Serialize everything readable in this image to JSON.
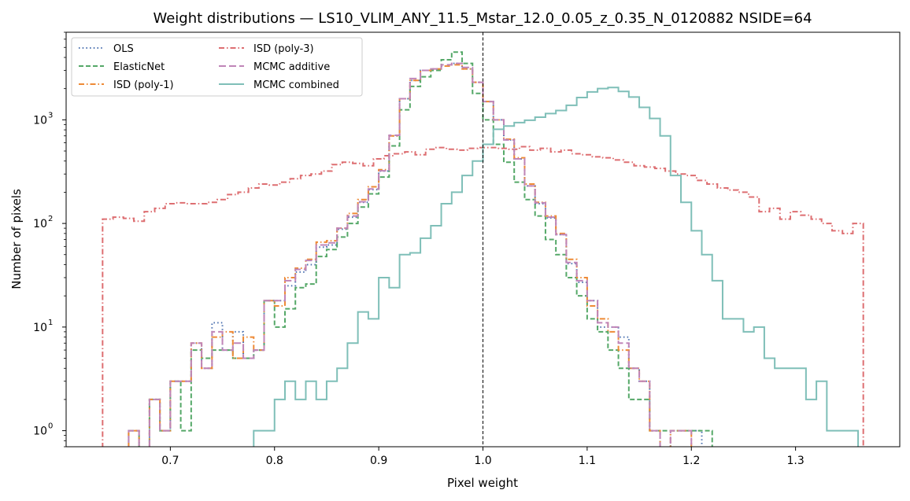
{
  "chart_data": {
    "type": "histogram-step",
    "title": "Weight distributions — LS10_VLIM_ANY_11.5_Mstar_12.0_0.05_z_0.35_N_0120882  NSIDE=64",
    "xlabel": "Pixel weight",
    "ylabel": "Number of pixels",
    "xlim": [
      0.6,
      1.4
    ],
    "ylim": [
      0.7,
      7000
    ],
    "yscale": "log",
    "grid": false,
    "legend_position": "top-left",
    "vline_x": 1.0,
    "x_ticks": [
      {
        "value": 0.7,
        "label": "0.7"
      },
      {
        "value": 0.8,
        "label": "0.8"
      },
      {
        "value": 0.9,
        "label": "0.9"
      },
      {
        "value": 1.0,
        "label": "1.0"
      },
      {
        "value": 1.1,
        "label": "1.1"
      },
      {
        "value": 1.2,
        "label": "1.2"
      },
      {
        "value": 1.3,
        "label": "1.3"
      }
    ],
    "y_ticks": [
      {
        "value": 1,
        "base": "10",
        "exp": "0"
      },
      {
        "value": 10,
        "base": "10",
        "exp": "1"
      },
      {
        "value": 100,
        "base": "10",
        "exp": "2"
      },
      {
        "value": 1000,
        "base": "10",
        "exp": "3"
      }
    ],
    "series": [
      {
        "name": "OLS",
        "color": "#4c72b0",
        "dash": "dotted",
        "edges": [
          0.66,
          0.67,
          0.68,
          0.69,
          0.7,
          0.71,
          0.72,
          0.73,
          0.74,
          0.75,
          0.76,
          0.77,
          0.78,
          0.79,
          0.8,
          0.81,
          0.82,
          0.83,
          0.84,
          0.85,
          0.86,
          0.87,
          0.88,
          0.89,
          0.9,
          0.91,
          0.92,
          0.93,
          0.94,
          0.95,
          0.96,
          0.97,
          0.98,
          0.99,
          1.0,
          1.01,
          1.02,
          1.03,
          1.04,
          1.05,
          1.06,
          1.07,
          1.08,
          1.09,
          1.1,
          1.11,
          1.12,
          1.13,
          1.14,
          1.15,
          1.16,
          1.17,
          1.18,
          1.19,
          1.2,
          1.21
        ],
        "counts": [
          1,
          0,
          2,
          1,
          3,
          3,
          7,
          4,
          11,
          6,
          9,
          5,
          6,
          18,
          18,
          25,
          34,
          40,
          59,
          62,
          88,
          115,
          160,
          212,
          320,
          700,
          1600,
          2400,
          3000,
          3100,
          3300,
          3500,
          3100,
          2300,
          1500,
          1000,
          640,
          420,
          230,
          155,
          113,
          78,
          41,
          27,
          18,
          10,
          10,
          8,
          4,
          3,
          1,
          0,
          1,
          1,
          1
        ]
      },
      {
        "name": "ElasticNet",
        "color": "#55a868",
        "dash": "dashed",
        "edges": [
          0.66,
          0.67,
          0.68,
          0.69,
          0.7,
          0.71,
          0.72,
          0.73,
          0.74,
          0.75,
          0.76,
          0.77,
          0.78,
          0.79,
          0.8,
          0.81,
          0.82,
          0.83,
          0.84,
          0.85,
          0.86,
          0.87,
          0.88,
          0.89,
          0.9,
          0.91,
          0.92,
          0.93,
          0.94,
          0.95,
          0.96,
          0.97,
          0.98,
          0.99,
          1.0,
          1.01,
          1.02,
          1.03,
          1.04,
          1.05,
          1.06,
          1.07,
          1.08,
          1.09,
          1.1,
          1.11,
          1.12,
          1.13,
          1.14,
          1.15,
          1.16,
          1.17,
          1.18,
          1.19,
          1.2,
          1.21,
          1.22
        ],
        "counts": [
          1,
          0,
          2,
          1,
          3,
          1,
          6,
          5,
          6,
          6,
          5,
          5,
          6,
          18,
          10,
          15,
          24,
          26,
          48,
          56,
          74,
          100,
          144,
          193,
          280,
          560,
          1250,
          2100,
          2600,
          3000,
          3800,
          4500,
          3500,
          1800,
          1000,
          580,
          390,
          250,
          170,
          118,
          70,
          50,
          30,
          20,
          12,
          9,
          6,
          4,
          2,
          2,
          1,
          1,
          1,
          1,
          1,
          1
        ]
      },
      {
        "name": "ISD (poly-1)",
        "color": "#ee8a36",
        "dash": "dashdot",
        "edges": [
          0.66,
          0.67,
          0.68,
          0.69,
          0.7,
          0.71,
          0.72,
          0.73,
          0.74,
          0.75,
          0.76,
          0.77,
          0.78,
          0.79,
          0.8,
          0.81,
          0.82,
          0.83,
          0.84,
          0.85,
          0.86,
          0.87,
          0.88,
          0.89,
          0.9,
          0.91,
          0.92,
          0.93,
          0.94,
          0.95,
          0.96,
          0.97,
          0.98,
          0.99,
          1.0,
          1.01,
          1.02,
          1.03,
          1.04,
          1.05,
          1.06,
          1.07,
          1.08,
          1.09,
          1.1,
          1.11,
          1.12,
          1.13,
          1.14,
          1.15,
          1.16,
          1.17,
          1.18,
          1.19,
          1.2
        ],
        "counts": [
          1,
          0,
          2,
          1,
          3,
          3,
          7,
          4,
          8,
          9,
          5,
          8,
          6,
          18,
          16,
          30,
          37,
          45,
          66,
          68,
          90,
          125,
          170,
          226,
          330,
          700,
          1600,
          2400,
          3000,
          3100,
          3300,
          3400,
          3100,
          2300,
          1500,
          1000,
          650,
          430,
          240,
          160,
          118,
          80,
          45,
          30,
          16,
          12,
          9,
          6,
          4,
          3,
          1,
          0,
          1,
          1
        ]
      },
      {
        "name": "ISD (poly-3)",
        "color": "#dd6e71",
        "dash": "dashdot",
        "edges": [
          0.635,
          0.645,
          0.655,
          0.665,
          0.675,
          0.685,
          0.695,
          0.705,
          0.715,
          0.725,
          0.735,
          0.745,
          0.755,
          0.765,
          0.775,
          0.785,
          0.795,
          0.805,
          0.815,
          0.825,
          0.835,
          0.845,
          0.855,
          0.865,
          0.875,
          0.885,
          0.895,
          0.905,
          0.915,
          0.925,
          0.935,
          0.945,
          0.955,
          0.965,
          0.975,
          0.985,
          0.995,
          1.005,
          1.015,
          1.025,
          1.035,
          1.045,
          1.055,
          1.065,
          1.075,
          1.085,
          1.095,
          1.105,
          1.115,
          1.125,
          1.135,
          1.145,
          1.155,
          1.165,
          1.175,
          1.185,
          1.195,
          1.205,
          1.215,
          1.225,
          1.235,
          1.245,
          1.255,
          1.265,
          1.275,
          1.285,
          1.295,
          1.305,
          1.315,
          1.325,
          1.335,
          1.345,
          1.355,
          1.365
        ],
        "counts": [
          110,
          115,
          112,
          105,
          130,
          140,
          155,
          158,
          155,
          155,
          160,
          170,
          190,
          200,
          220,
          240,
          235,
          250,
          270,
          290,
          300,
          320,
          370,
          390,
          380,
          360,
          420,
          450,
          470,
          490,
          460,
          520,
          540,
          520,
          510,
          530,
          540,
          540,
          530,
          520,
          550,
          510,
          530,
          490,
          510,
          470,
          460,
          440,
          430,
          410,
          390,
          360,
          350,
          340,
          320,
          300,
          290,
          260,
          240,
          220,
          210,
          200,
          180,
          130,
          140,
          110,
          130,
          120,
          110,
          100,
          85,
          80,
          100
        ]
      },
      {
        "name": "MCMC additive",
        "color": "#c085b8",
        "dash": "longdash",
        "edges": [
          0.66,
          0.67,
          0.68,
          0.69,
          0.7,
          0.71,
          0.72,
          0.73,
          0.74,
          0.75,
          0.76,
          0.77,
          0.78,
          0.79,
          0.8,
          0.81,
          0.82,
          0.83,
          0.84,
          0.85,
          0.86,
          0.87,
          0.88,
          0.89,
          0.9,
          0.91,
          0.92,
          0.93,
          0.94,
          0.95,
          0.96,
          0.97,
          0.98,
          0.99,
          1.0,
          1.01,
          1.02,
          1.03,
          1.04,
          1.05,
          1.06,
          1.07,
          1.08,
          1.09,
          1.1,
          1.11,
          1.12,
          1.13,
          1.14,
          1.15,
          1.16,
          1.17,
          1.18,
          1.19,
          1.2
        ],
        "counts": [
          1,
          0,
          2,
          1,
          3,
          3,
          7,
          4,
          9,
          6,
          7,
          5,
          6,
          18,
          18,
          28,
          36,
          44,
          62,
          65,
          90,
          118,
          162,
          215,
          322,
          710,
          1600,
          2500,
          3000,
          3100,
          3400,
          3500,
          3200,
          2300,
          1500,
          1000,
          640,
          420,
          230,
          158,
          115,
          78,
          42,
          28,
          18,
          11,
          10,
          7,
          4,
          3,
          1,
          0,
          1,
          1
        ]
      },
      {
        "name": "MCMC combined",
        "color": "#7fbfb8",
        "dash": "solid",
        "edges": [
          0.78,
          0.79,
          0.8,
          0.81,
          0.82,
          0.83,
          0.84,
          0.85,
          0.86,
          0.87,
          0.88,
          0.89,
          0.9,
          0.91,
          0.92,
          0.93,
          0.94,
          0.95,
          0.96,
          0.97,
          0.98,
          0.99,
          1.0,
          1.01,
          1.02,
          1.03,
          1.04,
          1.05,
          1.06,
          1.07,
          1.08,
          1.09,
          1.1,
          1.11,
          1.12,
          1.13,
          1.14,
          1.15,
          1.16,
          1.17,
          1.18,
          1.19,
          1.2,
          1.21,
          1.22,
          1.23,
          1.24,
          1.25,
          1.26,
          1.27,
          1.28,
          1.29,
          1.3,
          1.31,
          1.32,
          1.33,
          1.34,
          1.35,
          1.36
        ],
        "counts": [
          1,
          1,
          2,
          3,
          2,
          3,
          2,
          3,
          4,
          7,
          14,
          12,
          30,
          24,
          50,
          52,
          72,
          95,
          155,
          200,
          290,
          400,
          580,
          810,
          870,
          940,
          990,
          1060,
          1150,
          1230,
          1380,
          1640,
          1860,
          2000,
          2050,
          1880,
          1660,
          1320,
          1030,
          700,
          290,
          160,
          85,
          50,
          28,
          12,
          12,
          9,
          10,
          5,
          4,
          4,
          4,
          2,
          3,
          1,
          1,
          1
        ]
      }
    ]
  }
}
